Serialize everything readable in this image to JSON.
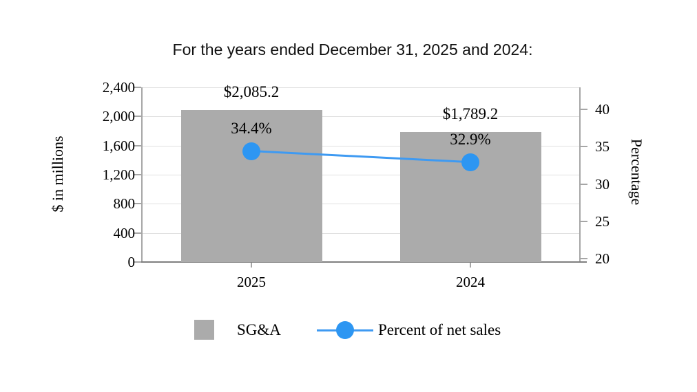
{
  "chart_data": {
    "type": "combo",
    "title": "For the years ended December 31, 2025 and 2024:",
    "categories": [
      "2025",
      "2024"
    ],
    "series": [
      {
        "name": "SG&A",
        "type": "bar",
        "axis": "left",
        "values": [
          2085.2,
          1789.2
        ],
        "data_labels": [
          "$2,085.2",
          "$1,789.2"
        ],
        "color": "#ABABAB"
      },
      {
        "name": "Percent of net sales",
        "type": "line",
        "axis": "right",
        "values": [
          34.4,
          32.9
        ],
        "data_labels": [
          "34.4%",
          "32.9%"
        ],
        "color": "#2D96F2"
      }
    ],
    "left_axis": {
      "title": "$ in millions",
      "min": 0,
      "max": 2400,
      "tick_values": [
        0,
        400,
        800,
        1200,
        1600,
        2000,
        2400
      ],
      "tick_labels": [
        "0",
        "400",
        "800",
        "1,200",
        "1,600",
        "2,000",
        "2,400"
      ]
    },
    "right_axis": {
      "title": "Percentage",
      "min": 19.5,
      "max": 43,
      "tick_values": [
        20,
        25,
        30,
        35,
        40
      ],
      "tick_labels": [
        "20",
        "25",
        "30",
        "35",
        "40"
      ]
    },
    "legend": {
      "position": "bottom",
      "entries": [
        "SG&A",
        "Percent of net sales"
      ]
    },
    "grid": "horizontal-left-axis-only",
    "colors": {
      "bar": "#ABABAB",
      "line": "#3E9AF2",
      "marker": "#2D96F2",
      "gridline": "#E0E0E0",
      "axis_line": "#A6A6A6",
      "x_axis_line": "#7F7F7F",
      "text": "#000000"
    }
  }
}
